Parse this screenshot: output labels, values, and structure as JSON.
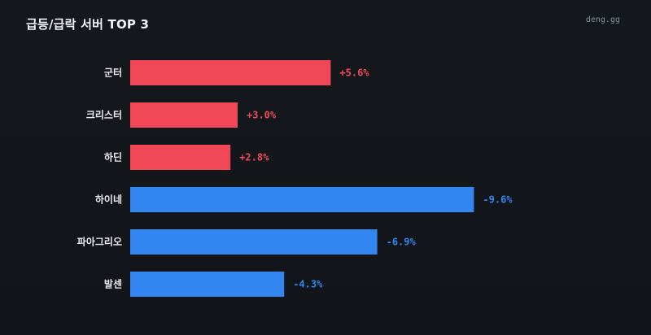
{
  "header": {
    "title": "급등/급락 서버 TOP 3",
    "brand": "deng.gg"
  },
  "colors": {
    "rise": "#f04857",
    "fall": "#3385f0",
    "background": "#13171b"
  },
  "chart_data": {
    "type": "bar",
    "orientation": "horizontal",
    "title": "급등/급락 서버 TOP 3",
    "xlabel": "",
    "ylabel": "",
    "unit": "%",
    "grid": false,
    "categories": [
      "군터",
      "크리스터",
      "하딘",
      "하이네",
      "파아그리오",
      "발센"
    ],
    "values": [
      5.6,
      3.0,
      2.8,
      -9.6,
      -6.9,
      -4.3
    ],
    "value_labels": [
      "+5.6%",
      "+3.0%",
      "+2.8%",
      "-9.6%",
      "-6.9%",
      "-4.3%"
    ],
    "xlim": [
      0,
      10
    ]
  }
}
